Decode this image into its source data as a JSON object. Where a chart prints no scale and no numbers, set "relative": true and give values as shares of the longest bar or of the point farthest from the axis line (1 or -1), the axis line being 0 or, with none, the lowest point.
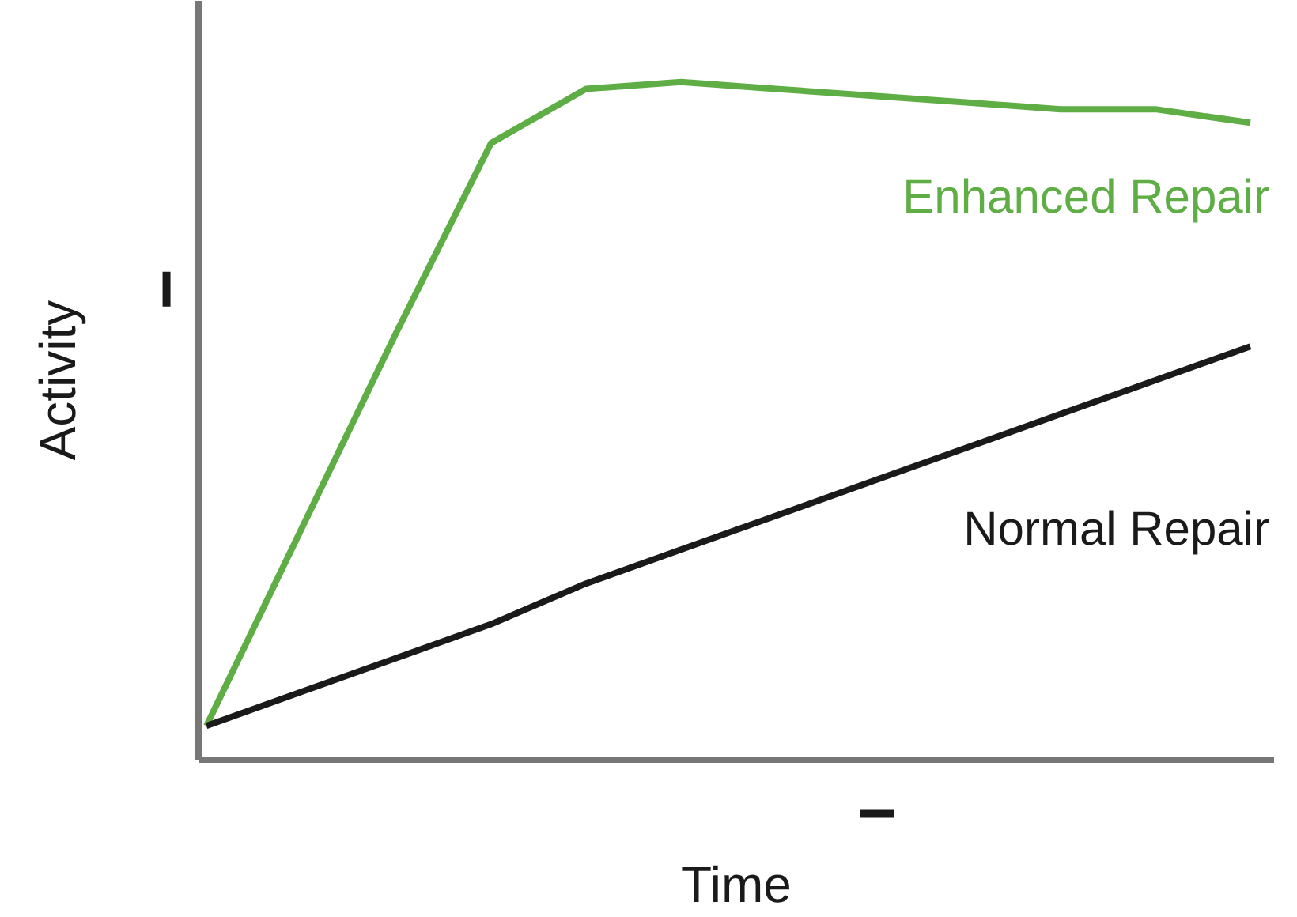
{
  "chart_data": {
    "type": "line",
    "relative": true,
    "xlabel": "Time",
    "ylabel": "Activity",
    "categories": [
      null,
      null,
      null,
      null,
      null,
      null,
      null,
      null,
      null,
      null,
      null,
      null
    ],
    "series": [
      {
        "name": "Enhanced Repair",
        "color": "#5fae45",
        "values": [
          0.05,
          0.34,
          0.63,
          0.91,
          0.99,
          1,
          0.99,
          0.98,
          0.97,
          0.96,
          0.96,
          0.94
        ]
      },
      {
        "name": "Normal Repair",
        "color": "#1a1a1a",
        "values": [
          0.05,
          0.1,
          0.15,
          0.2,
          0.26,
          0.31,
          0.36,
          0.41,
          0.46,
          0.51,
          0.56,
          0.61
        ]
      }
    ],
    "grid": false,
    "marker": "none",
    "line_style": "solid"
  }
}
